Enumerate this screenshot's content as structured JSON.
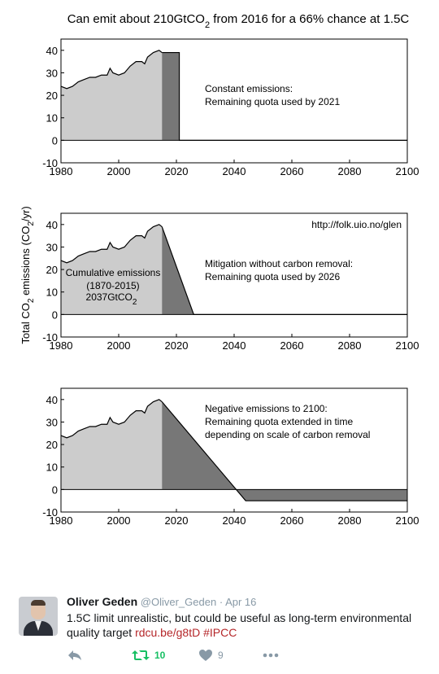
{
  "figure": {
    "title": "Can emit about 210GtCO2 from 2016 for a 66% chance at 1.5C",
    "ylabel": "Total CO2 emissions (CO2/yr)",
    "watermark": "http://folk.uio.no/glen",
    "cumulative_label": [
      "Cumulative emissions",
      "(1870-2015)",
      "2037GtCO2"
    ],
    "panel_labels": [
      [
        "Constant emissions:",
        "Remaining quota used by 2021"
      ],
      [
        "Mitigation without carbon removal:",
        "Remaining quota used by 2026"
      ],
      [
        "Negative emissions to 2100:",
        "Remaining quota extended in time",
        "depending on scale of carbon removal"
      ]
    ],
    "colors": {
      "historical": "#cccccc",
      "scenario": "#777777",
      "line": "#000000"
    }
  },
  "chart_data": [
    {
      "type": "area",
      "xlim": [
        1980,
        2100
      ],
      "ylim": [
        -10,
        45
      ],
      "xticks": [
        1980,
        2000,
        2020,
        2040,
        2060,
        2080,
        2100
      ],
      "yticks": [
        -10,
        0,
        10,
        20,
        30,
        40
      ],
      "grid": false,
      "series": [
        {
          "name": "historical",
          "x": [
            1980,
            1982,
            1984,
            1986,
            1988,
            1990,
            1992,
            1994,
            1996,
            1997,
            1998,
            2000,
            2002,
            2004,
            2006,
            2008,
            2009,
            2010,
            2012,
            2014,
            2015
          ],
          "y": [
            24,
            23,
            24,
            26,
            27,
            28,
            28,
            29,
            29,
            32,
            30,
            29,
            30,
            33,
            35,
            35,
            34,
            37,
            39,
            40,
            39
          ]
        },
        {
          "name": "scenario",
          "x": [
            2015,
            2021,
            2021,
            2100
          ],
          "y": [
            39,
            39,
            0,
            0
          ]
        }
      ]
    },
    {
      "type": "area",
      "xlim": [
        1980,
        2100
      ],
      "ylim": [
        -10,
        45
      ],
      "xticks": [
        1980,
        2000,
        2020,
        2040,
        2060,
        2080,
        2100
      ],
      "yticks": [
        -10,
        0,
        10,
        20,
        30,
        40
      ],
      "grid": false,
      "series": [
        {
          "name": "historical",
          "x": [
            1980,
            1982,
            1984,
            1986,
            1988,
            1990,
            1992,
            1994,
            1996,
            1997,
            1998,
            2000,
            2002,
            2004,
            2006,
            2008,
            2009,
            2010,
            2012,
            2014,
            2015
          ],
          "y": [
            24,
            23,
            24,
            26,
            27,
            28,
            28,
            29,
            29,
            32,
            30,
            29,
            30,
            33,
            35,
            35,
            34,
            37,
            39,
            40,
            39
          ]
        },
        {
          "name": "scenario",
          "x": [
            2015,
            2026,
            2100
          ],
          "y": [
            39,
            0,
            0
          ]
        }
      ]
    },
    {
      "type": "area",
      "xlim": [
        1980,
        2100
      ],
      "ylim": [
        -10,
        45
      ],
      "xticks": [
        1980,
        2000,
        2020,
        2040,
        2060,
        2080,
        2100
      ],
      "yticks": [
        -10,
        0,
        10,
        20,
        30,
        40
      ],
      "grid": false,
      "series": [
        {
          "name": "historical",
          "x": [
            1980,
            1982,
            1984,
            1986,
            1988,
            1990,
            1992,
            1994,
            1996,
            1997,
            1998,
            2000,
            2002,
            2004,
            2006,
            2008,
            2009,
            2010,
            2012,
            2014,
            2015
          ],
          "y": [
            24,
            23,
            24,
            26,
            27,
            28,
            28,
            29,
            29,
            32,
            30,
            29,
            30,
            33,
            35,
            35,
            34,
            37,
            39,
            40,
            39
          ]
        },
        {
          "name": "scenario",
          "x": [
            2015,
            2044,
            2100
          ],
          "y": [
            39,
            -5,
            -5
          ]
        }
      ]
    }
  ],
  "tweet": {
    "name": "Oliver Geden",
    "handle": "@Oliver_Geden",
    "separator": "·",
    "date": "Apr 16",
    "text": "1.5C limit unrealistic, but could be useful as long-term environmental quality target ",
    "link": "rdcu.be/g8tD",
    "hashtag": "#IPCC",
    "retweet_count": "10",
    "like_count": "9",
    "icons": [
      "reply-icon",
      "retweet-icon",
      "heart-icon",
      "more-icon"
    ],
    "colors": {
      "retweet": "#17bf63",
      "muted": "#8899a6",
      "link": "#b5272a"
    }
  }
}
